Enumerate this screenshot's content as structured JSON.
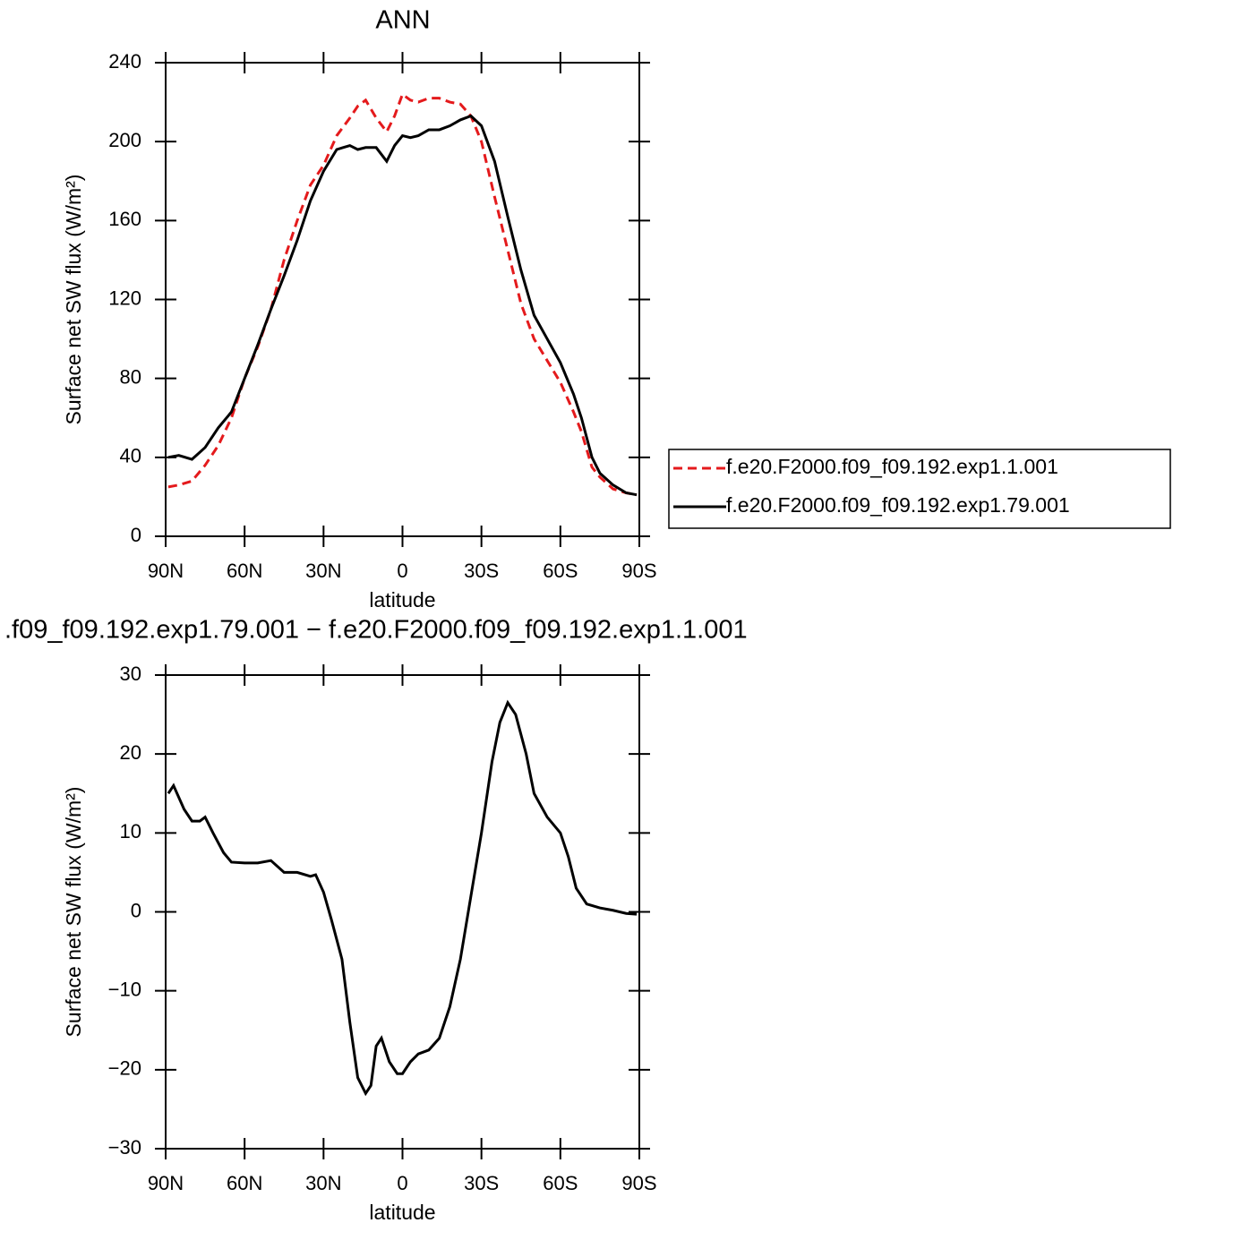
{
  "chart_data": [
    {
      "type": "line",
      "title": "ANN",
      "xlabel": "latitude",
      "ylabel": "Surface net SW flux (W/m²)",
      "x": [
        89,
        85,
        80,
        75,
        70,
        65,
        60,
        55,
        50,
        45,
        40,
        35,
        30,
        25,
        20,
        17,
        14,
        10,
        6,
        3,
        0,
        -3,
        -6,
        -10,
        -14,
        -18,
        -22,
        -26,
        -30,
        -35,
        -40,
        -45,
        -50,
        -55,
        -60,
        -65,
        -68,
        -72,
        -75,
        -80,
        -85,
        -89
      ],
      "series": [
        {
          "name": "f.e20.F2000.f09_f09.192.exp1.1.001",
          "color": "#e41a1c",
          "line_style": "dashed",
          "values": [
            25,
            26,
            28,
            36,
            46,
            60,
            80,
            96,
            115,
            140,
            160,
            178,
            188,
            203,
            212,
            218,
            221,
            212,
            205,
            213,
            224,
            221,
            220,
            222,
            222,
            220,
            219,
            213,
            200,
            172,
            145,
            118,
            100,
            89,
            78,
            63,
            53,
            35,
            30,
            24,
            22,
            21
          ]
        },
        {
          "name": "f.e20.F2000.f09_f09.192.exp1.79.001",
          "color": "#000000",
          "line_style": "solid",
          "values": [
            40,
            41,
            39,
            45,
            55,
            63,
            80,
            97,
            115,
            132,
            150,
            170,
            185,
            196,
            198,
            196,
            197,
            197,
            190,
            198,
            203,
            202,
            203,
            206,
            206,
            208,
            211,
            213,
            208,
            190,
            162,
            135,
            112,
            100,
            88,
            72,
            60,
            40,
            32,
            26,
            22,
            21
          ]
        }
      ],
      "xlim": [
        90,
        -90
      ],
      "xticks": [
        {
          "value": 90,
          "label": "90N"
        },
        {
          "value": 60,
          "label": "60N"
        },
        {
          "value": 30,
          "label": "30N"
        },
        0,
        {
          "value": -30,
          "label": "30S"
        },
        {
          "value": -60,
          "label": "60S"
        },
        {
          "value": -90,
          "label": "90S"
        }
      ],
      "ylim": [
        0,
        240
      ],
      "yticks": [
        0,
        40,
        80,
        120,
        160,
        200,
        240
      ],
      "legend": "right"
    },
    {
      "type": "line",
      "title": ".f09_f09.192.exp1.79.001 − f.e20.F2000.f09_f09.192.exp1.1.001",
      "xlabel": "latitude",
      "ylabel": "Surface net SW flux (W/m²)",
      "x": [
        89,
        87,
        83,
        80,
        77,
        75,
        72,
        68,
        65,
        60,
        55,
        50,
        45,
        40,
        35,
        33,
        30,
        27,
        23,
        20,
        17,
        14,
        12,
        10,
        8,
        5,
        2,
        0,
        -3,
        -6,
        -10,
        -14,
        -18,
        -22,
        -26,
        -30,
        -34,
        -37,
        -40,
        -43,
        -47,
        -50,
        -55,
        -60,
        -63,
        -66,
        -70,
        -75,
        -80,
        -85,
        -89
      ],
      "series": [
        {
          "color": "#000000",
          "line_style": "solid",
          "values": [
            15,
            16,
            13,
            11.5,
            11.5,
            12,
            10,
            7.5,
            6.3,
            6.2,
            6.2,
            6.5,
            5,
            5,
            4.5,
            4.7,
            2.5,
            -1,
            -6,
            -14,
            -21,
            -23,
            -22,
            -17,
            -16,
            -19,
            -20.5,
            -20.5,
            -19,
            -18,
            -17.5,
            -16,
            -12,
            -6,
            2,
            10,
            19,
            24,
            26.5,
            25,
            20,
            15,
            12,
            10,
            7,
            3,
            1,
            0.5,
            0.2,
            -0.2,
            -0.3
          ]
        }
      ],
      "xlim": [
        90,
        -90
      ],
      "xticks": [
        {
          "value": 90,
          "label": "90N"
        },
        {
          "value": 60,
          "label": "60N"
        },
        {
          "value": 30,
          "label": "30N"
        },
        0,
        {
          "value": -30,
          "label": "30S"
        },
        {
          "value": -60,
          "label": "60S"
        },
        {
          "value": -90,
          "label": "90S"
        }
      ],
      "ylim": [
        -30,
        30
      ],
      "yticks": [
        {
          "value": -30,
          "label": "−30"
        },
        {
          "value": -20,
          "label": "−20"
        },
        {
          "value": -10,
          "label": "−10"
        },
        0,
        10,
        20,
        30
      ]
    }
  ]
}
